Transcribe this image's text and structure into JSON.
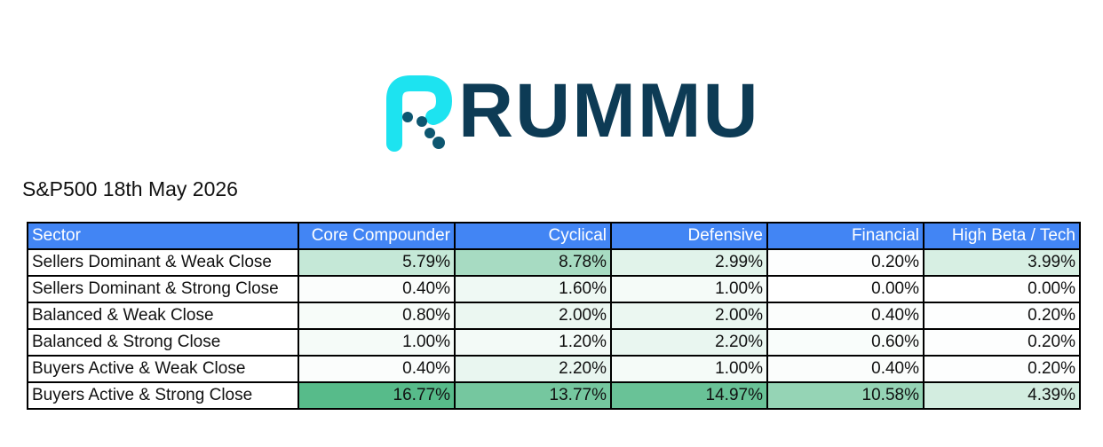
{
  "logo": {
    "text": "RUMMU"
  },
  "title": "S&P500 18th May 2026",
  "table": {
    "header": [
      "Sector",
      "Core Compounder",
      "Cyclical",
      "Defensive",
      "Financial",
      "High Beta / Tech"
    ],
    "rows": [
      [
        "Sellers Dominant & Weak Close",
        "5.79%",
        "8.78%",
        "2.99%",
        "0.20%",
        "3.99%"
      ],
      [
        "Sellers Dominant & Strong Close",
        "0.40%",
        "1.60%",
        "1.00%",
        "0.00%",
        "0.00%"
      ],
      [
        "Balanced & Weak Close",
        "0.80%",
        "2.00%",
        "2.00%",
        "0.40%",
        "0.20%"
      ],
      [
        "Balanced & Strong Close",
        "1.00%",
        "1.20%",
        "2.20%",
        "0.60%",
        "0.20%"
      ],
      [
        "Buyers Active & Weak Close",
        "0.40%",
        "2.20%",
        "1.00%",
        "0.40%",
        "0.20%"
      ],
      [
        "Buyers Active & Strong Close",
        "16.77%",
        "13.77%",
        "14.97%",
        "10.58%",
        "4.39%"
      ]
    ]
  }
}
